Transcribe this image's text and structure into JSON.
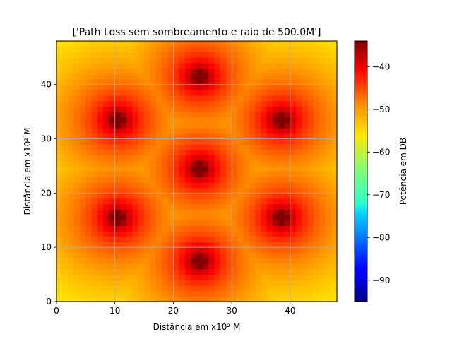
{
  "chart_data": {
    "type": "heatmap",
    "title": "['Path Loss sem sombreamento e raio de 500.0M']",
    "xlabel": "Distância em x10² M",
    "ylabel": "Distância em x10² M",
    "colorbar_label": "Potência em DB",
    "colormap": "jet",
    "xlim": [
      0,
      48
    ],
    "ylim": [
      0,
      48
    ],
    "x_ticks": [
      0,
      10,
      20,
      30,
      40
    ],
    "y_ticks": [
      0,
      10,
      20,
      30,
      40
    ],
    "grid": true,
    "grid_size": 48,
    "color_range": [
      -95,
      -34
    ],
    "colorbar_ticks": [
      -40,
      -50,
      -60,
      -70,
      -80,
      -90
    ],
    "cell_value_model": "max over base stations of (-34 - 17 * log10(d)), d = distance in grid cells (min 1); minimum -95",
    "base_stations": [
      {
        "x": 24.5,
        "y": 7.5
      },
      {
        "x": 10.5,
        "y": 15.5
      },
      {
        "x": 38.5,
        "y": 15.5
      },
      {
        "x": 24.5,
        "y": 24.5
      },
      {
        "x": 10.5,
        "y": 33.5
      },
      {
        "x": 38.5,
        "y": 33.5
      },
      {
        "x": 24.5,
        "y": 41.5
      }
    ]
  }
}
